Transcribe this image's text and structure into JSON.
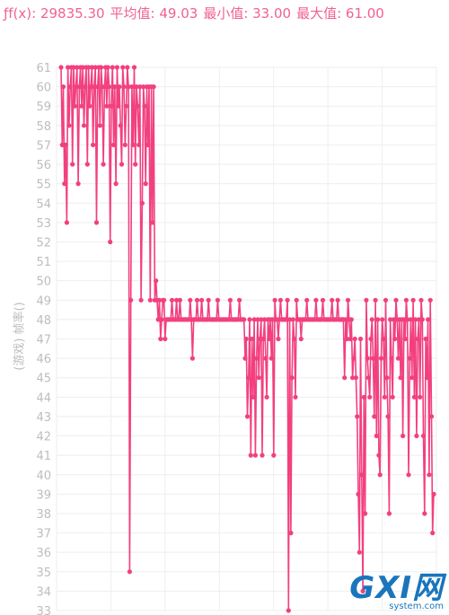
{
  "stats": {
    "fx": "ƒf(x): 29835.30",
    "avg": "平均值: 49.03",
    "min": "最小值: 33.00",
    "max": "最大值: 61.00"
  },
  "watermark": {
    "main": "GXI网",
    "sub": "system.com"
  },
  "chart_data": {
    "type": "line",
    "title": "",
    "xlabel": "",
    "ylabel": "(游戏) 帧率()",
    "ylim": [
      33,
      61
    ],
    "y_ticks": [
      33,
      34,
      35,
      36,
      37,
      38,
      39,
      40,
      41,
      42,
      43,
      44,
      45,
      46,
      47,
      48,
      49,
      50,
      51,
      52,
      53,
      54,
      55,
      56,
      57,
      58,
      59,
      60,
      61
    ],
    "grid": true,
    "color": "#f2407f",
    "series": [
      {
        "values": [
          61,
          57,
          60,
          55,
          57,
          53,
          61,
          58,
          60,
          61,
          56,
          61,
          59,
          60,
          61,
          55,
          60,
          61,
          59,
          61,
          58,
          60,
          61,
          56,
          61,
          59,
          60,
          61,
          57,
          60,
          61,
          53,
          60,
          61,
          58,
          61,
          60,
          56,
          60,
          61,
          59,
          61,
          60,
          52,
          59,
          61,
          57,
          60,
          55,
          61,
          59,
          60,
          58,
          56,
          61,
          60,
          57,
          59,
          61,
          60,
          35,
          49,
          60,
          57,
          61,
          56,
          60,
          59,
          57,
          60,
          49,
          54,
          60,
          59,
          55,
          60,
          57,
          60,
          49,
          60,
          53,
          60,
          49,
          50,
          49,
          48,
          49,
          47,
          48,
          49,
          49,
          47,
          48,
          48,
          48,
          48,
          48,
          49,
          48,
          48,
          48,
          49,
          48,
          48,
          49,
          48,
          48,
          48,
          48,
          48,
          48,
          48,
          48,
          49,
          48,
          46,
          48,
          48,
          48,
          49,
          48,
          48,
          48,
          49,
          48,
          48,
          48,
          48,
          48,
          49,
          48,
          48,
          48,
          48,
          48,
          48,
          48,
          49,
          48,
          48,
          48,
          48,
          48,
          48,
          48,
          48,
          48,
          48,
          49,
          48,
          48,
          48,
          48,
          48,
          48,
          48,
          49,
          48,
          48,
          48,
          48,
          46,
          47,
          43,
          45,
          48,
          41,
          47,
          44,
          48,
          41,
          46,
          48,
          45,
          47,
          48,
          41,
          47,
          48,
          46,
          44,
          48,
          47,
          48,
          46,
          48,
          41,
          49,
          48,
          48,
          47,
          48,
          49,
          48,
          48,
          48,
          48,
          48,
          49,
          33,
          48,
          37,
          45,
          48,
          47,
          44,
          49,
          48,
          48,
          48,
          47,
          48,
          48,
          48,
          48,
          49,
          48,
          48,
          48,
          48,
          48,
          48,
          48,
          49,
          48,
          48,
          48,
          48,
          48,
          49,
          48,
          48,
          48,
          48,
          48,
          48,
          48,
          49,
          48,
          48,
          48,
          48,
          49,
          48,
          48,
          48,
          48,
          48,
          45,
          48,
          47,
          49,
          48,
          47,
          48,
          45,
          46,
          47,
          45,
          43,
          39,
          36,
          47,
          40,
          34,
          44,
          38,
          49,
          46,
          45,
          44,
          47,
          48,
          46,
          43,
          49,
          42,
          48,
          41,
          40,
          46,
          48,
          47,
          44,
          49,
          45,
          43,
          38,
          48,
          46,
          44,
          48,
          47,
          49,
          48,
          46,
          48,
          45,
          48,
          42,
          48,
          47,
          49,
          48,
          40,
          46,
          48,
          45,
          49,
          44,
          48,
          42,
          47,
          48,
          44,
          49,
          48,
          42,
          38,
          47,
          45,
          48,
          40,
          49,
          43,
          37,
          39
        ]
      }
    ]
  }
}
